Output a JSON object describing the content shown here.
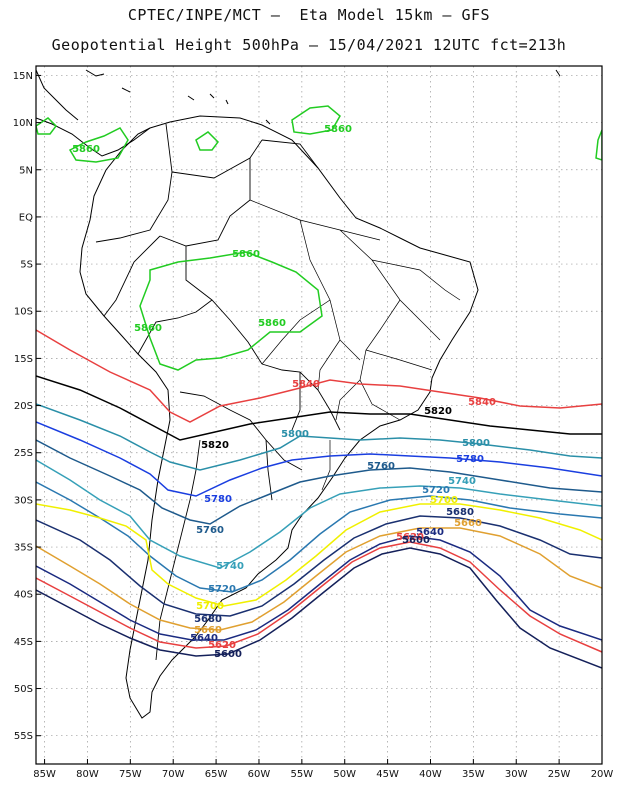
{
  "header": {
    "line1": "CPTEC/INPE/MCT —  Eta Model 15km — GFS",
    "line2": "Geopotential Height 500hPa — 15/04/2021 12UTC fct=213h"
  },
  "axes": {
    "lat_labels": [
      "15N",
      "10N",
      "5N",
      "EQ",
      "5S",
      "10S",
      "15S",
      "20S",
      "25S",
      "30S",
      "35S",
      "40S",
      "45S",
      "50S",
      "55S"
    ],
    "lat_values": [
      15,
      10,
      5,
      0,
      -5,
      -10,
      -15,
      -20,
      -25,
      -30,
      -35,
      -40,
      -45,
      -50,
      -55
    ],
    "lon_labels": [
      "85W",
      "80W",
      "75W",
      "70W",
      "65W",
      "60W",
      "55W",
      "50W",
      "45W",
      "40W",
      "35W",
      "30W",
      "25W",
      "20W"
    ],
    "lon_values": [
      -85,
      -80,
      -75,
      -70,
      -65,
      -60,
      -55,
      -50,
      -45,
      -40,
      -35,
      -30,
      -25,
      -20
    ],
    "lon_range": [
      -86,
      -20
    ],
    "lat_range": [
      -58,
      16
    ],
    "grid": "dotted"
  },
  "contours": [
    {
      "value": 5860,
      "label": "5860",
      "color": "#22cc22"
    },
    {
      "value": 5840,
      "label": "5840",
      "color": "#e84040"
    },
    {
      "value": 5820,
      "label": "5820",
      "color": "#000000"
    },
    {
      "value": 5800,
      "label": "5800",
      "color": "#2a8fa8"
    },
    {
      "value": 5780,
      "label": "5780",
      "color": "#1a3ee0"
    },
    {
      "value": 5760,
      "label": "5760",
      "color": "#1e5a8c"
    },
    {
      "value": 5740,
      "label": "5740",
      "color": "#36a0b8"
    },
    {
      "value": 5720,
      "label": "5720",
      "color": "#2a78b0"
    },
    {
      "value": 5700,
      "label": "5700",
      "color": "#f0f000"
    },
    {
      "value": 5680,
      "label": "5680",
      "color": "#1a3070"
    },
    {
      "value": 5660,
      "label": "5660",
      "color": "#e0a030"
    },
    {
      "value": 5640,
      "label": "5640",
      "color": "#1a2a80"
    },
    {
      "value": 5620,
      "label": "5620",
      "color": "#e84040"
    },
    {
      "value": 5600,
      "label": "5600",
      "color": "#14205a"
    }
  ]
}
